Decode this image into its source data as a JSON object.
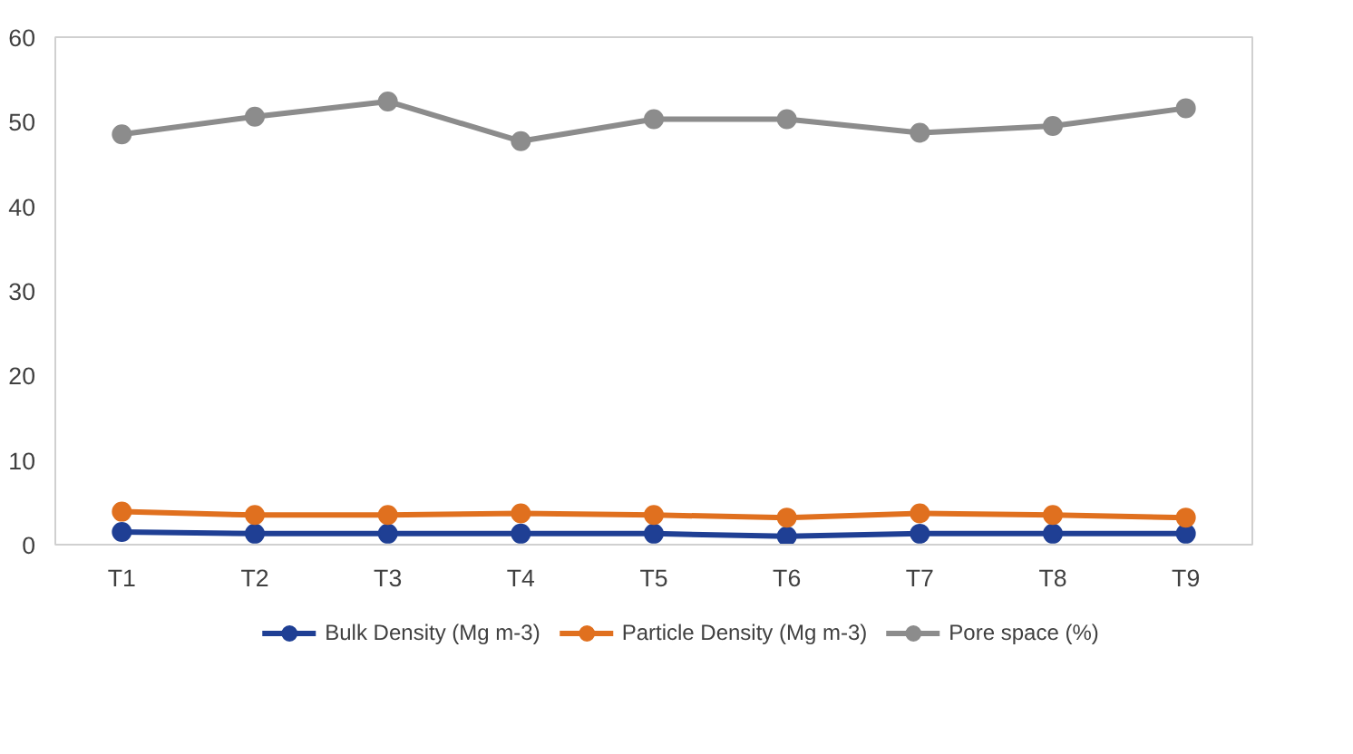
{
  "chart_data": {
    "type": "line",
    "categories": [
      "T1",
      "T2",
      "T3",
      "T4",
      "T5",
      "T6",
      "T7",
      "T8",
      "T9"
    ],
    "series": [
      {
        "name": "Bulk Density (Mg m-3)",
        "color": "#1f3f94",
        "values": [
          1.5,
          1.3,
          1.3,
          1.3,
          1.3,
          1.0,
          1.3,
          1.3,
          1.3
        ]
      },
      {
        "name": "Particle Density (Mg m-3)",
        "color": "#e0701f",
        "values": [
          3.9,
          3.5,
          3.5,
          3.7,
          3.5,
          3.2,
          3.7,
          3.5,
          3.2
        ]
      },
      {
        "name": "Pore space (%)",
        "color": "#8c8c8c",
        "values": [
          48.5,
          50.6,
          52.4,
          47.7,
          50.3,
          50.3,
          48.7,
          49.5,
          51.6
        ]
      }
    ],
    "ylim": [
      0,
      60
    ],
    "yticks": [
      0,
      10,
      20,
      30,
      40,
      50,
      60
    ],
    "grid": false,
    "legend": "bottom",
    "marker": "circle",
    "line_style": "solid"
  }
}
